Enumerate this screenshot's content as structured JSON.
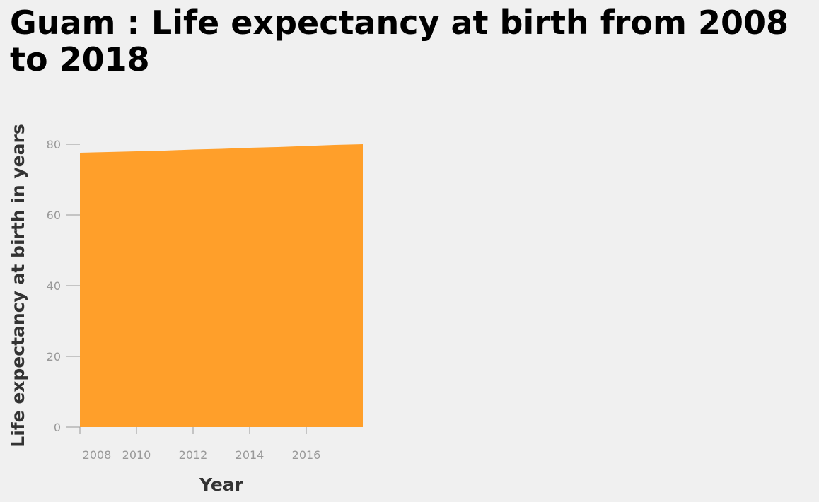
{
  "title": "Guam : Life expectancy at birth from 2008 to 2018",
  "colors": {
    "area": "#ff9f2a",
    "tick": "#999999",
    "axis_text": "#333333",
    "background": "#f0f0f0"
  },
  "chart_data": {
    "type": "area",
    "title": "Guam : Life expectancy at birth from 2008 to 2018",
    "xlabel": "Year",
    "ylabel": "Life expectancy at birth in years",
    "x": [
      2008,
      2009,
      2010,
      2011,
      2012,
      2013,
      2014,
      2015,
      2016,
      2017,
      2018
    ],
    "series": [
      {
        "values": [
          77.6,
          77.8,
          78.0,
          78.2,
          78.5,
          78.7,
          79.0,
          79.2,
          79.5,
          79.8,
          80.0
        ]
      }
    ],
    "xlim": [
      2008,
      2018
    ],
    "ylim": [
      0,
      80
    ],
    "x_ticks": [
      2008,
      2010,
      2012,
      2014,
      2016
    ],
    "x_tick_labels": [
      "2008",
      "2010",
      "2012",
      "2014",
      "2016"
    ],
    "y_ticks": [
      0,
      20,
      40,
      60,
      80
    ],
    "y_tick_labels": [
      "0",
      "20",
      "40",
      "60",
      "80"
    ],
    "grid": false,
    "legend": "none"
  }
}
